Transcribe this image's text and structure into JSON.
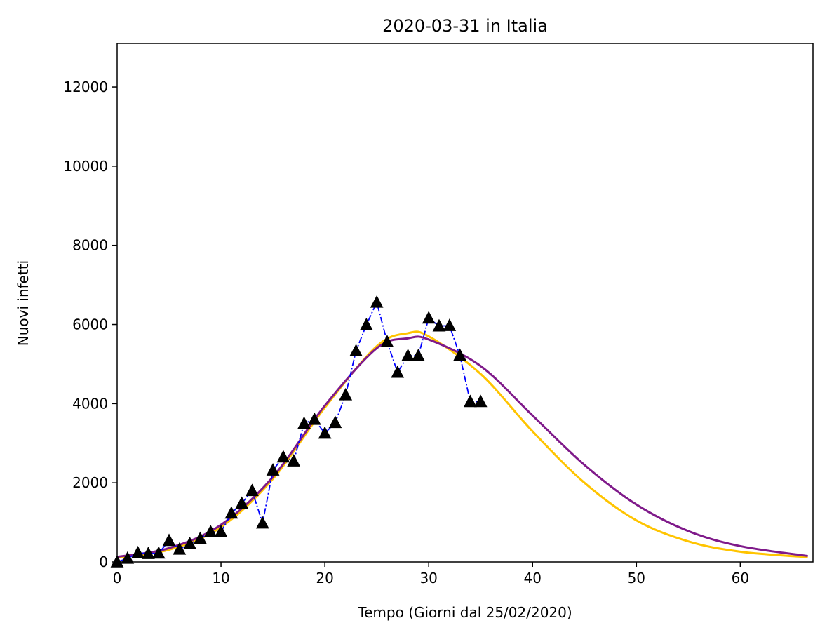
{
  "chart_data": {
    "type": "line",
    "title": "2020-03-31 in Italia",
    "xlabel": "Tempo (Giorni dal 25/02/2020)",
    "ylabel": "Nuovi infetti",
    "xlim": [
      0,
      67
    ],
    "ylim": [
      0,
      13100
    ],
    "xticks": [
      0,
      10,
      20,
      30,
      40,
      50,
      60
    ],
    "yticks": [
      0,
      2000,
      4000,
      6000,
      8000,
      10000,
      12000
    ],
    "grid": false,
    "colors": {
      "observed_line": "#0000ff",
      "observed_marker": "#000000",
      "fit_a": "#ffc400",
      "fit_b": "#7f1a8a"
    },
    "series": [
      {
        "style": "dashdot-line-triangle-markers",
        "x": [
          0,
          1,
          2,
          3,
          4,
          5,
          6,
          7,
          8,
          9,
          10,
          11,
          12,
          13,
          14,
          15,
          16,
          17,
          18,
          19,
          20,
          21,
          22,
          23,
          24,
          25,
          26,
          27,
          28,
          29,
          30,
          31,
          32,
          33,
          34,
          35
        ],
        "values": [
          0,
          90,
          230,
          210,
          220,
          540,
          320,
          460,
          590,
          760,
          760,
          1230,
          1480,
          1800,
          980,
          2320,
          2650,
          2550,
          3500,
          3600,
          3250,
          3520,
          4220,
          5330,
          5990,
          6560,
          5560,
          4790,
          5210,
          5210,
          6160,
          5960,
          5970,
          5220,
          4050,
          4050
        ]
      },
      {
        "style": "solid-curve",
        "color_key": "fit_a",
        "x": [
          0,
          5,
          10,
          15,
          20,
          25,
          28,
          30,
          35,
          40,
          45,
          50,
          55,
          60,
          66.5
        ],
        "values": [
          110,
          310,
          880,
          2100,
          3900,
          5450,
          5780,
          5700,
          4750,
          3300,
          2000,
          1050,
          520,
          260,
          120
        ]
      },
      {
        "style": "solid-curve",
        "color_key": "fit_b",
        "x": [
          0,
          5,
          10,
          15,
          20,
          25,
          28,
          30,
          35,
          40,
          45,
          50,
          55,
          60,
          66.5
        ],
        "values": [
          130,
          350,
          940,
          2150,
          3950,
          5400,
          5650,
          5620,
          4950,
          3700,
          2450,
          1450,
          780,
          400,
          150
        ]
      }
    ]
  }
}
